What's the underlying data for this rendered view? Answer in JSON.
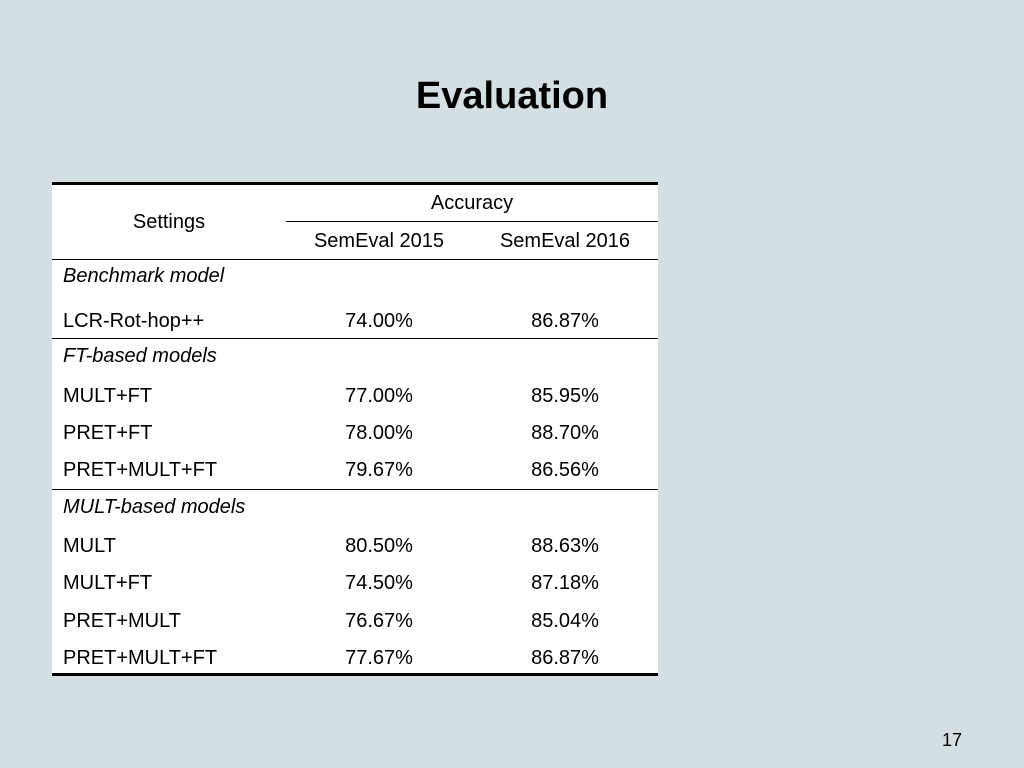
{
  "slide": {
    "title": "Evaluation",
    "page_number": "17"
  },
  "table": {
    "header": {
      "settings": "Settings",
      "accuracy": "Accuracy",
      "col1": "SemEval 2015",
      "col2": "SemEval 2016"
    },
    "groups": [
      {
        "title": "Benchmark model",
        "rows": [
          {
            "setting": "LCR-Rot-hop++",
            "v1": "74.00%",
            "v2": "86.87%"
          }
        ]
      },
      {
        "title": "FT-based models",
        "rows": [
          {
            "setting": "MULT+FT",
            "v1": "77.00%",
            "v2": "85.95%"
          },
          {
            "setting": "PRET+FT",
            "v1": "78.00%",
            "v2": "88.70%"
          },
          {
            "setting": "PRET+MULT+FT",
            "v1": "79.67%",
            "v2": "86.56%"
          }
        ]
      },
      {
        "title": "MULT-based models",
        "rows": [
          {
            "setting": "MULT",
            "v1": "80.50%",
            "v2": "88.63%"
          },
          {
            "setting": "MULT+FT",
            "v1": "74.50%",
            "v2": "87.18%"
          },
          {
            "setting": "PRET+MULT",
            "v1": "76.67%",
            "v2": "85.04%"
          },
          {
            "setting": "PRET+MULT+FT",
            "v1": "77.67%",
            "v2": "86.87%"
          }
        ]
      }
    ]
  }
}
